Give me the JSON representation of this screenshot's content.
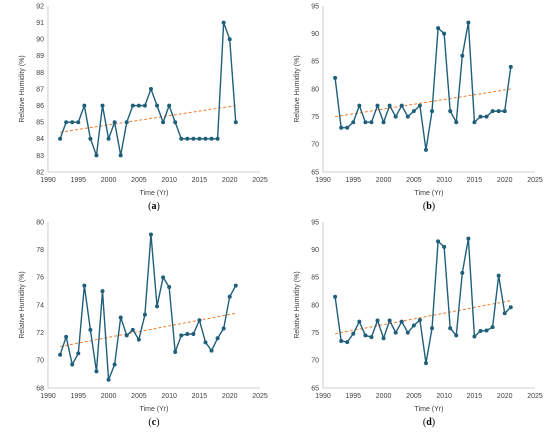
{
  "colors": {
    "series": "#1f5f7a",
    "trend": "#f07d2a",
    "axis": "#bfbfbf",
    "text": "#404040"
  },
  "chart_data": [
    {
      "id": "a",
      "panel_label": "a",
      "type": "line",
      "xlabel": "Time (Yr)",
      "ylabel": "Relative Humidity (%)",
      "xlim": [
        1990,
        2025
      ],
      "ylim": [
        82,
        92
      ],
      "xticks": [
        1990,
        1995,
        2000,
        2005,
        2010,
        2015,
        2020,
        2025
      ],
      "yticks": [
        82,
        83,
        84,
        85,
        86,
        87,
        88,
        89,
        90,
        91,
        92
      ],
      "x": [
        1992,
        1993,
        1994,
        1995,
        1996,
        1997,
        1998,
        1999,
        2000,
        2001,
        2002,
        2003,
        2004,
        2005,
        2006,
        2007,
        2008,
        2009,
        2010,
        2011,
        2012,
        2013,
        2014,
        2015,
        2016,
        2017,
        2018,
        2019,
        2020,
        2021
      ],
      "y": [
        84,
        85,
        85,
        85,
        86,
        84,
        83,
        86,
        84,
        85,
        83,
        85,
        86,
        86,
        86,
        87,
        86,
        85,
        86,
        85,
        84,
        84,
        84,
        84,
        84,
        84,
        84,
        91,
        90,
        85
      ],
      "trend": {
        "x": [
          1992,
          2021
        ],
        "y": [
          84.4,
          86.0
        ]
      }
    },
    {
      "id": "b",
      "panel_label": "b",
      "type": "line",
      "xlabel": "Time (Yr)",
      "ylabel": "Relative Humidity (%)",
      "xlim": [
        1990,
        2025
      ],
      "ylim": [
        65,
        95
      ],
      "xticks": [
        1990,
        1995,
        2000,
        2005,
        2010,
        2015,
        2020,
        2025
      ],
      "yticks": [
        65,
        70,
        75,
        80,
        85,
        90,
        95
      ],
      "x": [
        1992,
        1993,
        1994,
        1995,
        1996,
        1997,
        1998,
        1999,
        2000,
        2001,
        2002,
        2003,
        2004,
        2005,
        2006,
        2007,
        2008,
        2009,
        2010,
        2011,
        2012,
        2013,
        2014,
        2015,
        2016,
        2017,
        2018,
        2019,
        2020,
        2021
      ],
      "y": [
        82,
        73,
        73,
        74,
        77,
        74,
        74,
        77,
        74,
        77,
        75,
        77,
        75,
        76,
        77,
        69,
        76,
        91,
        90,
        76,
        74,
        86,
        92,
        74,
        75,
        75,
        76,
        76,
        76,
        84
      ],
      "trend": {
        "x": [
          1992,
          2021
        ],
        "y": [
          75.0,
          80.0
        ]
      }
    },
    {
      "id": "c",
      "panel_label": "c",
      "type": "line",
      "xlabel": "Time (Yr)",
      "ylabel": "Relative Humidity (%)",
      "xlim": [
        1990,
        2025
      ],
      "ylim": [
        68,
        80
      ],
      "xticks": [
        1990,
        1995,
        2000,
        2005,
        2010,
        2015,
        2020,
        2025
      ],
      "yticks": [
        68,
        70,
        72,
        74,
        76,
        78,
        80
      ],
      "x": [
        1992,
        1993,
        1994,
        1995,
        1996,
        1997,
        1998,
        1999,
        2000,
        2001,
        2002,
        2003,
        2004,
        2005,
        2006,
        2007,
        2008,
        2009,
        2010,
        2011,
        2012,
        2013,
        2014,
        2015,
        2016,
        2017,
        2018,
        2019,
        2020,
        2021
      ],
      "y": [
        70.4,
        71.7,
        69.7,
        70.5,
        75.4,
        72.2,
        69.2,
        75.0,
        68.6,
        69.7,
        73.1,
        71.8,
        72.2,
        71.5,
        73.3,
        79.1,
        73.9,
        76.0,
        75.3,
        70.6,
        71.8,
        71.9,
        71.9,
        72.9,
        71.3,
        70.7,
        71.6,
        72.3,
        74.6,
        75.4
      ],
      "trend": {
        "x": [
          1992,
          2021
        ],
        "y": [
          71.0,
          73.4
        ]
      }
    },
    {
      "id": "d",
      "panel_label": "d",
      "type": "line",
      "xlabel": "Time (Yr)",
      "ylabel": "Relative Humidity (%)",
      "xlim": [
        1990,
        2025
      ],
      "ylim": [
        65,
        95
      ],
      "xticks": [
        1990,
        1995,
        2000,
        2005,
        2010,
        2015,
        2020,
        2025
      ],
      "yticks": [
        65,
        70,
        75,
        80,
        85,
        90,
        95
      ],
      "x": [
        1992,
        1993,
        1994,
        1995,
        1996,
        1997,
        1998,
        1999,
        2000,
        2001,
        2002,
        2003,
        2004,
        2005,
        2006,
        2007,
        2008,
        2009,
        2010,
        2011,
        2012,
        2013,
        2014,
        2015,
        2016,
        2017,
        2018,
        2019,
        2020,
        2021
      ],
      "y": [
        81.5,
        73.5,
        73.3,
        74.8,
        77.0,
        74.5,
        74.2,
        77.2,
        74.0,
        77.2,
        75.0,
        77.0,
        75.0,
        76.3,
        77.3,
        69.5,
        75.8,
        91.5,
        90.5,
        75.8,
        74.5,
        85.8,
        92.0,
        74.3,
        75.3,
        75.4,
        76.0,
        85.3,
        78.5,
        79.6
      ],
      "trend": {
        "x": [
          1992,
          2021
        ],
        "y": [
          74.8,
          80.8
        ]
      }
    }
  ]
}
